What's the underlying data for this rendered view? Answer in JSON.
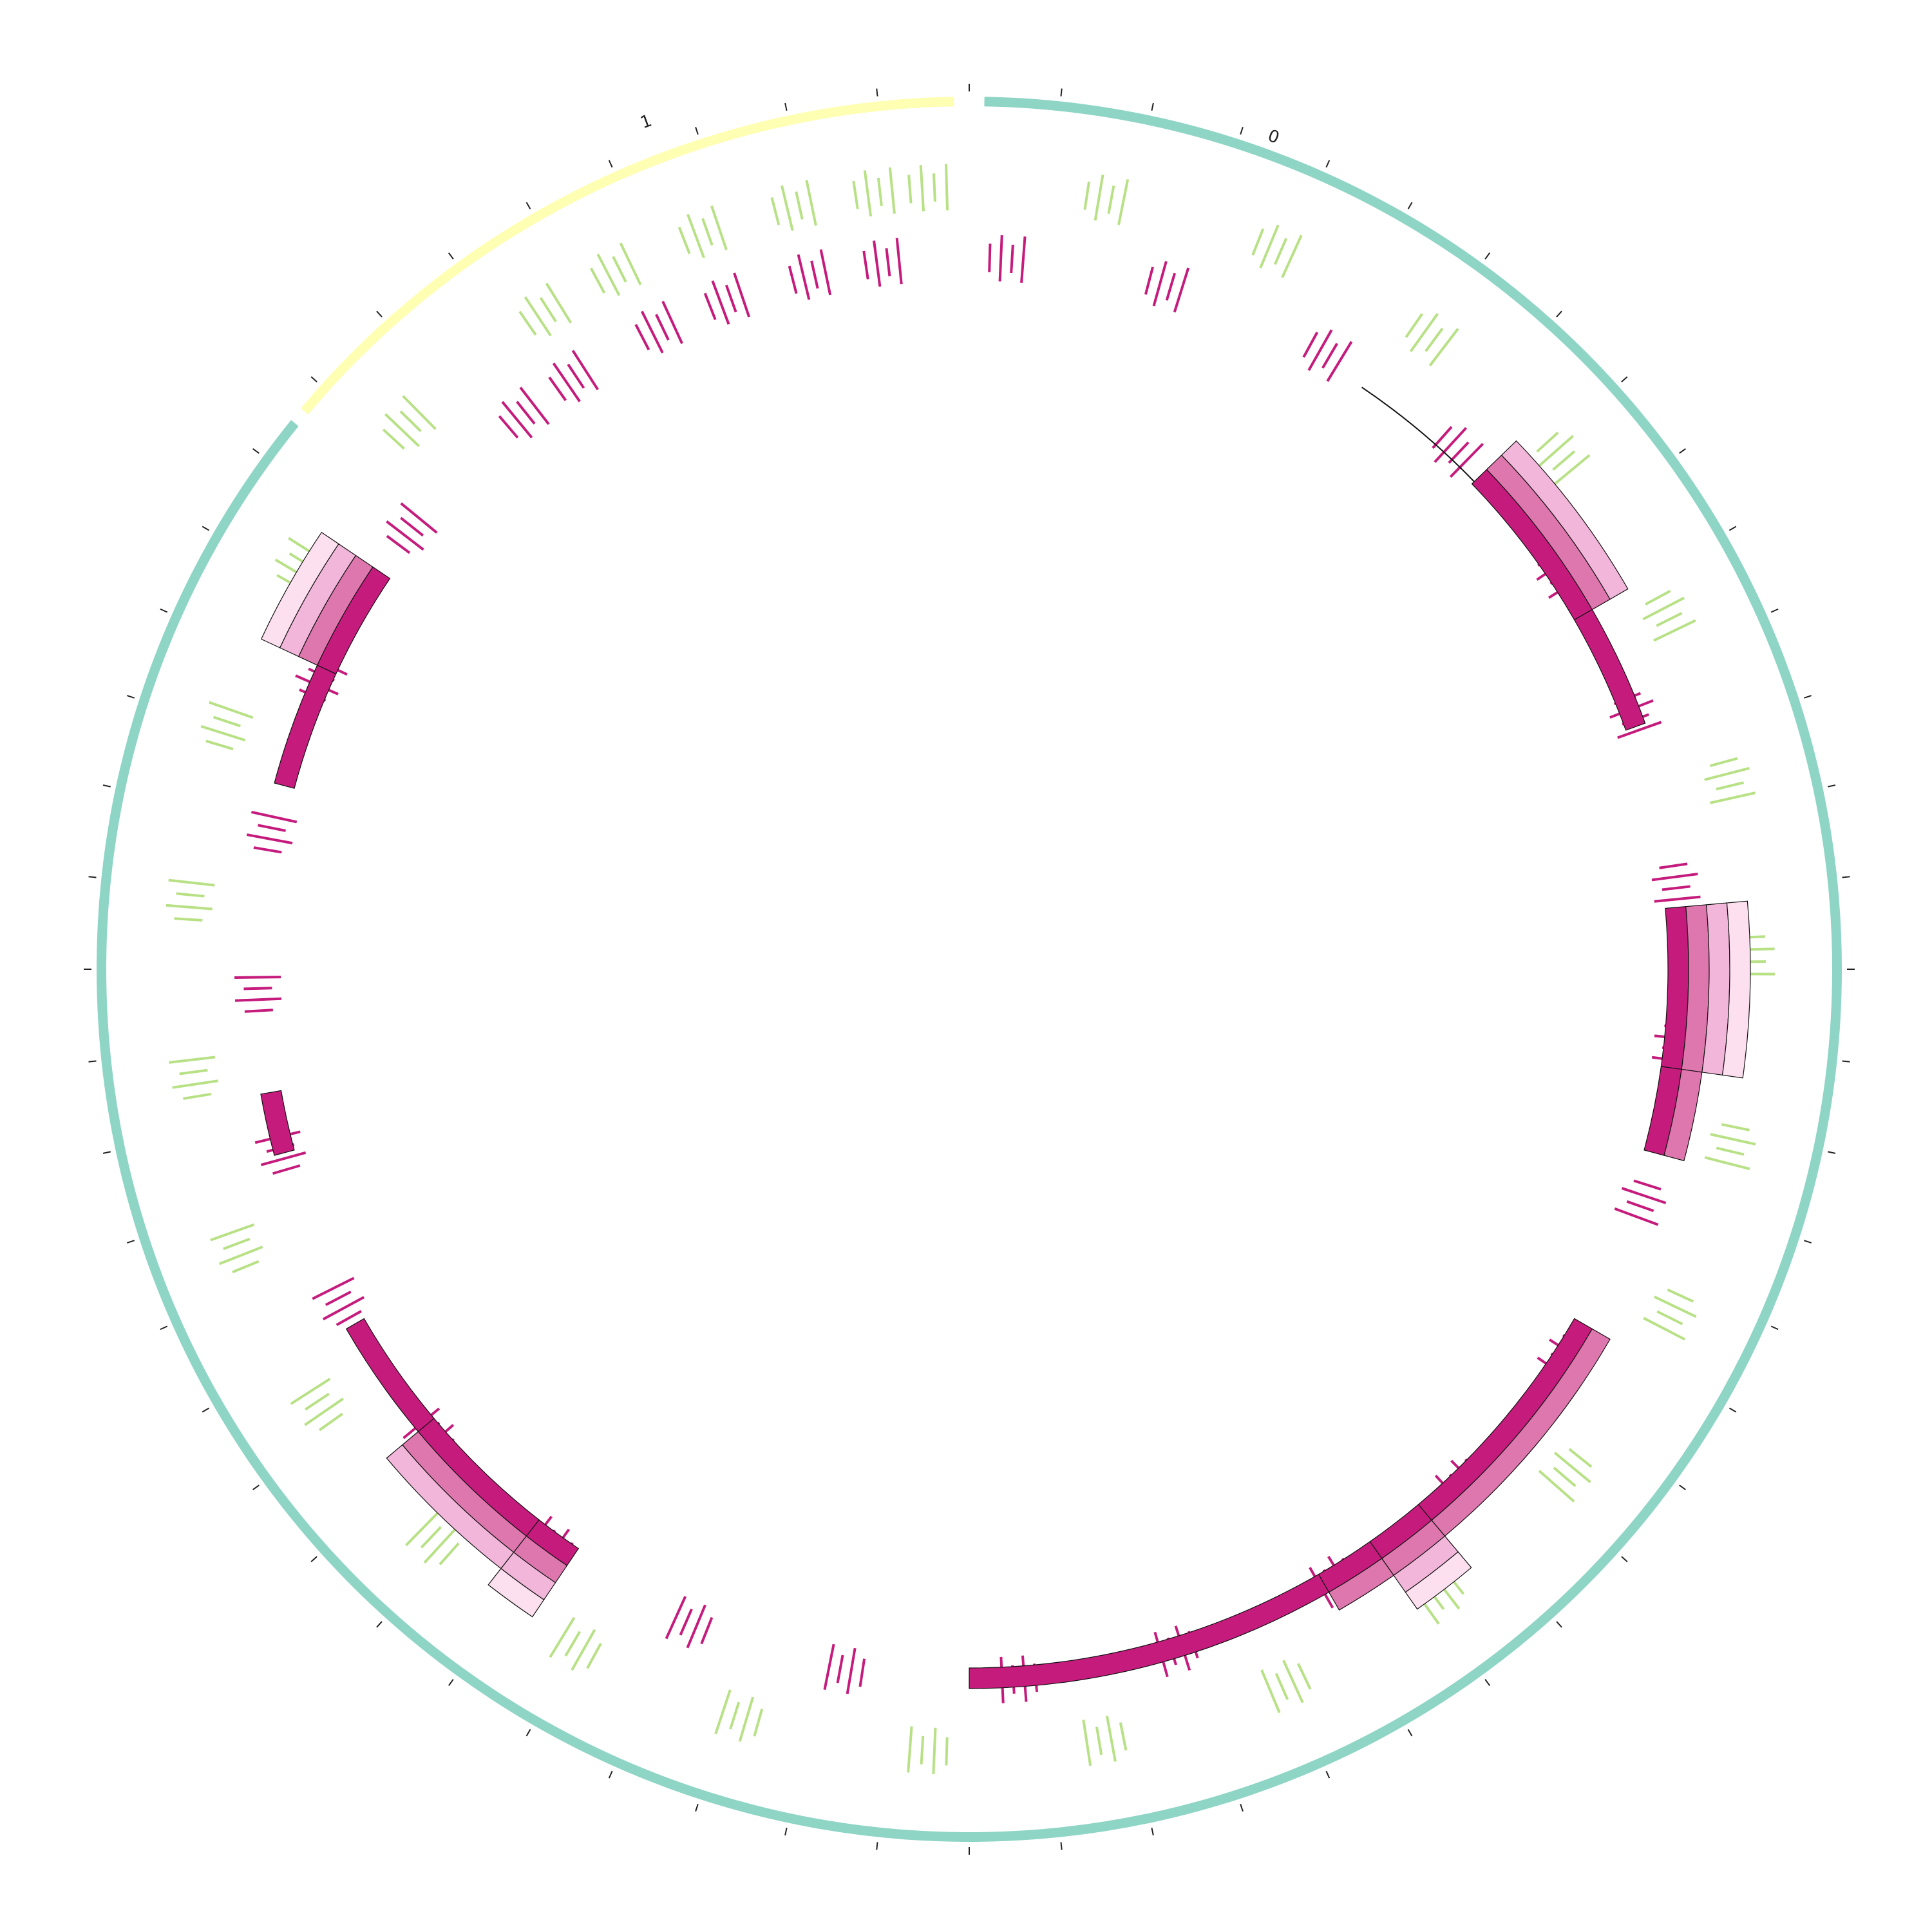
{
  "diagram": {
    "type": "circos-genome-plot",
    "colors": {
      "chrom_0": "#8ed5c6",
      "chrom_1": "#ffffb3",
      "link_dark": "#c51b7d",
      "link_mid": "#de77ae",
      "link_light": "#f1b6da",
      "link_pale": "#fde0ef",
      "green_marks": "#b8e186",
      "tick": "#222222",
      "outline": "#111111"
    },
    "chromosomes": [
      {
        "id": "chrom-0",
        "label": "0",
        "start_deg": 1,
        "end_deg": 309
      },
      {
        "id": "chrom-1",
        "label": "1",
        "start_deg": 310,
        "end_deg": 359
      }
    ],
    "tick_step_deg": 6,
    "green_clusters_deg": [
      -27,
      -13,
      -3,
      10,
      23,
      36,
      49,
      63,
      76,
      89,
      103,
      116,
      130,
      143,
      156,
      170,
      183,
      197,
      210,
      223,
      236,
      249,
      262,
      275,
      288,
      301,
      314,
      327,
      340,
      353
    ],
    "pink_clusters_deg": [
      -34,
      -20,
      -7,
      3,
      16,
      30,
      43,
      56,
      69,
      83,
      96,
      109,
      123,
      136,
      149,
      163,
      176,
      190,
      203,
      216,
      229,
      242,
      255,
      268,
      281,
      294,
      308,
      321,
      334,
      347
    ],
    "blocks": [
      {
        "start_deg": 85,
        "end_deg": 98,
        "layers": 4
      },
      {
        "start_deg": 98,
        "end_deg": 105,
        "layers": 2
      },
      {
        "start_deg": 120,
        "end_deg": 140,
        "layers": 2
      },
      {
        "start_deg": 140,
        "end_deg": 145,
        "layers": 4
      },
      {
        "start_deg": 145,
        "end_deg": 150,
        "layers": 2
      },
      {
        "start_deg": 150,
        "end_deg": 180,
        "layers": 1
      },
      {
        "start_deg": 214,
        "end_deg": 218,
        "layers": 4
      },
      {
        "start_deg": 218,
        "end_deg": 230,
        "layers": 3
      },
      {
        "start_deg": 230,
        "end_deg": 240,
        "layers": 1
      },
      {
        "start_deg": 255,
        "end_deg": 260,
        "layers": 1
      },
      {
        "start_deg": 285,
        "end_deg": 295,
        "layers": 1
      },
      {
        "start_deg": 295,
        "end_deg": 304,
        "layers": 4
      },
      {
        "start_deg": 46,
        "end_deg": 60,
        "layers": 3
      },
      {
        "start_deg": 60,
        "end_deg": 70,
        "layers": 1
      }
    ],
    "single_lines": [
      {
        "start_deg": 34,
        "end_deg": 46
      }
    ]
  }
}
